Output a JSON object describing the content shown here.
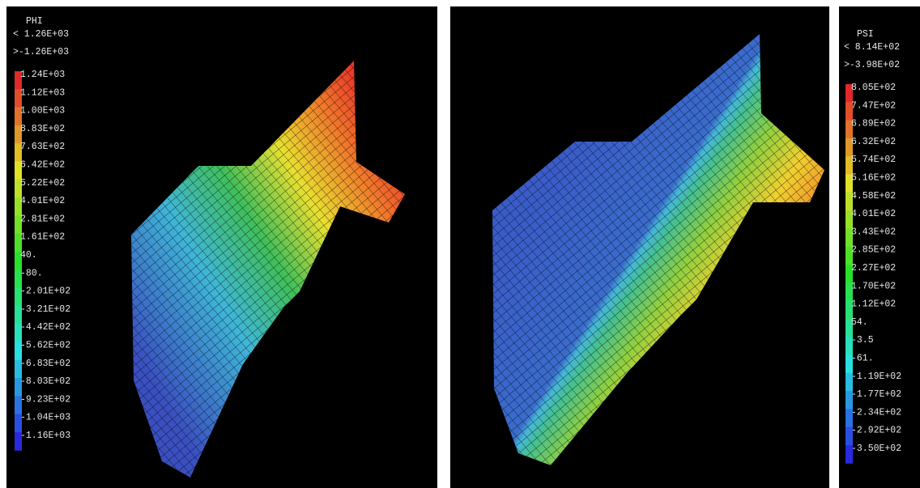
{
  "panels": [
    {
      "title": "PHI",
      "max": "< 1.26E+03",
      "min": ">-1.26E+03",
      "legend": [
        "1.24E+03",
        "1.12E+03",
        "1.00E+03",
        "8.83E+02",
        "7.63E+02",
        "6.42E+02",
        "5.22E+02",
        "4.01E+02",
        "2.81E+02",
        "1.61E+02",
        "40.",
        "-80.",
        "-2.01E+02",
        "-3.21E+02",
        "-4.42E+02",
        "-5.62E+02",
        "-6.83E+02",
        "-8.03E+02",
        "-9.23E+02",
        "-1.04E+03",
        "-1.16E+03"
      ]
    },
    {
      "title": "PSI",
      "max": "< 8.14E+02",
      "min": ">-3.98E+02",
      "legend": [
        "8.05E+02",
        "7.47E+02",
        "6.89E+02",
        "6.32E+02",
        "5.74E+02",
        "5.16E+02",
        "4.58E+02",
        "4.01E+02",
        "3.43E+02",
        "2.85E+02",
        "2.27E+02",
        "1.70E+02",
        "1.12E+02",
        "54.",
        "-3.5",
        "-61.",
        "-1.19E+02",
        "-1.77E+02",
        "-2.34E+02",
        "-2.92E+02",
        "-3.50E+02"
      ]
    }
  ]
}
